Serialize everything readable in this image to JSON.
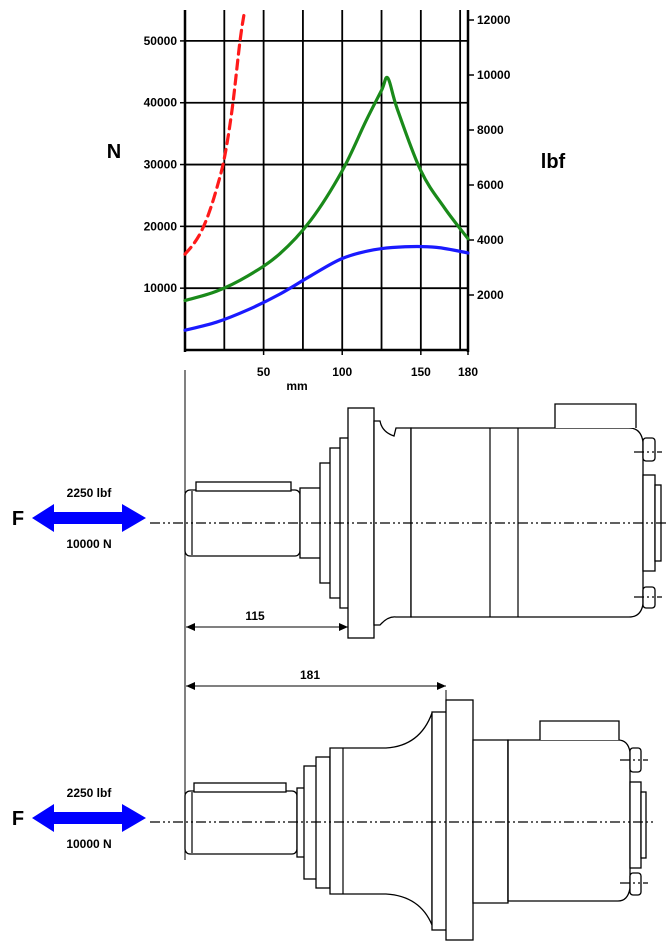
{
  "chart_data": {
    "type": "line",
    "xlabel": "mm",
    "ylabel_left": "N",
    "ylabel_right": "lbf",
    "xlim": [
      0,
      180
    ],
    "ylim_left": [
      0,
      55000
    ],
    "ylim_right": [
      0,
      12364
    ],
    "x_ticks": [
      50,
      100,
      150,
      180
    ],
    "y_ticks_left": [
      10000,
      20000,
      30000,
      40000,
      50000
    ],
    "y_ticks_right": [
      2000,
      4000,
      6000,
      8000,
      10000,
      12000
    ],
    "grid": true,
    "series": [
      {
        "color": "#ff1a1a",
        "dash": "dashed",
        "x": [
          0,
          5,
          10,
          15,
          20,
          25,
          30,
          35,
          38
        ],
        "y": [
          15500,
          17000,
          19000,
          22000,
          26000,
          31000,
          39000,
          50000,
          55000
        ]
      },
      {
        "color": "#1a8a1a",
        "dash": "solid",
        "x": [
          0,
          20,
          40,
          60,
          80,
          100,
          115,
          125,
          129,
          135,
          150,
          165,
          180
        ],
        "y": [
          8000,
          9500,
          12000,
          15500,
          21000,
          29000,
          37000,
          42000,
          44000,
          39000,
          29000,
          23000,
          18000
        ]
      },
      {
        "color": "#1a1aff",
        "dash": "solid",
        "x": [
          0,
          20,
          40,
          60,
          80,
          100,
          120,
          140,
          160,
          180
        ],
        "y": [
          3200,
          4500,
          6500,
          9000,
          12000,
          14800,
          16200,
          16700,
          16600,
          15700
        ]
      }
    ]
  },
  "diagram": {
    "force_label": "F",
    "force_lbf": "2250 lbf",
    "force_n": "10000 N",
    "arrow_color": "#0000ff",
    "dim_top": "115",
    "dim_bottom": "181"
  }
}
